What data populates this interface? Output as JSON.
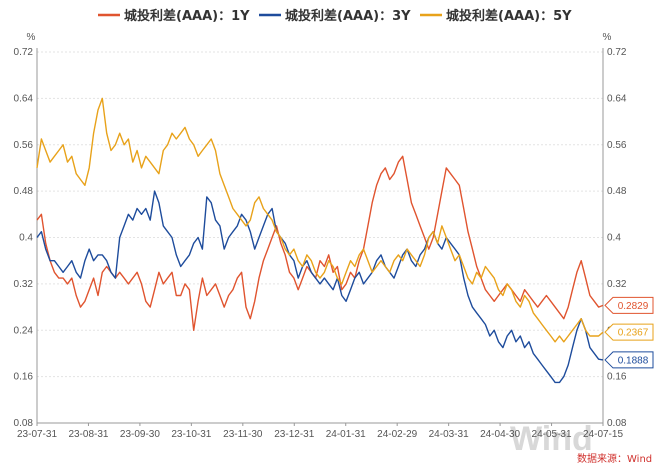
{
  "chart_data": {
    "type": "line",
    "unit_left": "%",
    "unit_right": "%",
    "ylim": [
      0.08,
      0.72
    ],
    "yticks": [
      0.08,
      0.16,
      0.24,
      0.32,
      0.4,
      0.48,
      0.56,
      0.64,
      0.72
    ],
    "ytick_labels": [
      "0.08",
      "0.16",
      "0.24",
      "0.32",
      "0.4",
      "0.48",
      "0.56",
      "0.64",
      "0.72"
    ],
    "xticks": [
      "23-07-31",
      "23-08-31",
      "23-09-30",
      "23-10-31",
      "23-11-30",
      "23-12-31",
      "24-01-31",
      "24-02-29",
      "24-03-31",
      "24-04-30",
      "24-05-31",
      "24-07-15"
    ],
    "source": "数据来源：Wind",
    "watermark": "Wind",
    "series": [
      {
        "name": "城投利差(AAA)：1Y",
        "color": "#e0542f",
        "end_label": "0.2829",
        "values": [
          0.43,
          0.44,
          0.39,
          0.36,
          0.34,
          0.33,
          0.33,
          0.32,
          0.33,
          0.3,
          0.28,
          0.29,
          0.31,
          0.33,
          0.3,
          0.34,
          0.35,
          0.34,
          0.33,
          0.34,
          0.33,
          0.32,
          0.33,
          0.34,
          0.32,
          0.29,
          0.28,
          0.31,
          0.34,
          0.32,
          0.33,
          0.34,
          0.3,
          0.3,
          0.32,
          0.31,
          0.24,
          0.29,
          0.33,
          0.3,
          0.31,
          0.32,
          0.3,
          0.28,
          0.3,
          0.31,
          0.33,
          0.34,
          0.28,
          0.26,
          0.29,
          0.33,
          0.36,
          0.38,
          0.4,
          0.42,
          0.39,
          0.37,
          0.34,
          0.33,
          0.31,
          0.33,
          0.35,
          0.34,
          0.33,
          0.36,
          0.35,
          0.37,
          0.34,
          0.35,
          0.31,
          0.32,
          0.34,
          0.33,
          0.36,
          0.38,
          0.42,
          0.46,
          0.49,
          0.51,
          0.52,
          0.5,
          0.51,
          0.53,
          0.54,
          0.5,
          0.46,
          0.44,
          0.42,
          0.4,
          0.38,
          0.4,
          0.44,
          0.48,
          0.52,
          0.51,
          0.5,
          0.49,
          0.45,
          0.41,
          0.38,
          0.35,
          0.33,
          0.31,
          0.3,
          0.29,
          0.3,
          0.31,
          0.32,
          0.31,
          0.3,
          0.29,
          0.31,
          0.3,
          0.29,
          0.28,
          0.29,
          0.3,
          0.29,
          0.28,
          0.27,
          0.26,
          0.28,
          0.31,
          0.34,
          0.36,
          0.33,
          0.3,
          0.29,
          0.28,
          0.2829
        ]
      },
      {
        "name": "城投利差(AAA)：3Y",
        "color": "#1e4c9c",
        "end_label": "0.1888",
        "values": [
          0.4,
          0.41,
          0.38,
          0.36,
          0.36,
          0.35,
          0.34,
          0.35,
          0.36,
          0.34,
          0.33,
          0.36,
          0.38,
          0.36,
          0.37,
          0.37,
          0.36,
          0.34,
          0.33,
          0.4,
          0.42,
          0.44,
          0.43,
          0.45,
          0.44,
          0.45,
          0.43,
          0.48,
          0.46,
          0.42,
          0.41,
          0.4,
          0.37,
          0.35,
          0.36,
          0.37,
          0.39,
          0.4,
          0.38,
          0.47,
          0.46,
          0.43,
          0.42,
          0.38,
          0.4,
          0.41,
          0.42,
          0.44,
          0.43,
          0.41,
          0.38,
          0.4,
          0.42,
          0.44,
          0.45,
          0.41,
          0.4,
          0.39,
          0.37,
          0.36,
          0.33,
          0.35,
          0.36,
          0.34,
          0.33,
          0.32,
          0.33,
          0.32,
          0.31,
          0.33,
          0.3,
          0.29,
          0.31,
          0.33,
          0.34,
          0.32,
          0.33,
          0.34,
          0.36,
          0.37,
          0.35,
          0.34,
          0.33,
          0.35,
          0.37,
          0.38,
          0.36,
          0.35,
          0.37,
          0.38,
          0.4,
          0.41,
          0.39,
          0.38,
          0.4,
          0.39,
          0.38,
          0.37,
          0.33,
          0.3,
          0.28,
          0.27,
          0.26,
          0.25,
          0.23,
          0.24,
          0.22,
          0.21,
          0.23,
          0.24,
          0.22,
          0.23,
          0.21,
          0.22,
          0.2,
          0.19,
          0.18,
          0.17,
          0.16,
          0.15,
          0.15,
          0.16,
          0.18,
          0.21,
          0.24,
          0.26,
          0.24,
          0.21,
          0.2,
          0.19,
          0.1888
        ]
      },
      {
        "name": "城投利差(AAA)：5Y",
        "color": "#e8a21a",
        "end_label": "0.2367",
        "values": [
          0.52,
          0.57,
          0.55,
          0.53,
          0.54,
          0.55,
          0.56,
          0.53,
          0.54,
          0.51,
          0.5,
          0.49,
          0.52,
          0.58,
          0.62,
          0.64,
          0.58,
          0.55,
          0.56,
          0.58,
          0.56,
          0.57,
          0.53,
          0.55,
          0.52,
          0.54,
          0.53,
          0.52,
          0.51,
          0.55,
          0.56,
          0.58,
          0.57,
          0.58,
          0.59,
          0.57,
          0.56,
          0.54,
          0.55,
          0.56,
          0.57,
          0.55,
          0.51,
          0.49,
          0.47,
          0.45,
          0.44,
          0.43,
          0.42,
          0.43,
          0.46,
          0.47,
          0.45,
          0.44,
          0.43,
          0.41,
          0.4,
          0.38,
          0.37,
          0.38,
          0.36,
          0.35,
          0.37,
          0.36,
          0.34,
          0.33,
          0.34,
          0.36,
          0.35,
          0.33,
          0.32,
          0.34,
          0.36,
          0.35,
          0.37,
          0.38,
          0.36,
          0.34,
          0.35,
          0.36,
          0.35,
          0.34,
          0.36,
          0.37,
          0.36,
          0.38,
          0.37,
          0.36,
          0.35,
          0.37,
          0.4,
          0.41,
          0.39,
          0.42,
          0.4,
          0.38,
          0.36,
          0.37,
          0.35,
          0.33,
          0.32,
          0.34,
          0.33,
          0.35,
          0.34,
          0.33,
          0.31,
          0.3,
          0.32,
          0.31,
          0.29,
          0.28,
          0.3,
          0.29,
          0.27,
          0.26,
          0.25,
          0.24,
          0.23,
          0.22,
          0.23,
          0.22,
          0.23,
          0.24,
          0.25,
          0.26,
          0.24,
          0.23,
          0.23,
          0.23,
          0.2367
        ]
      }
    ]
  }
}
